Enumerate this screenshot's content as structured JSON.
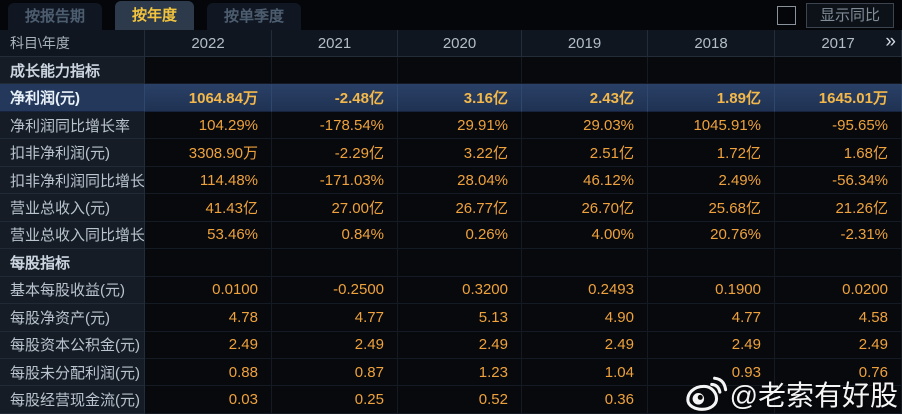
{
  "tabs": [
    {
      "label": "按报告期",
      "active": false
    },
    {
      "label": "按年度",
      "active": true
    },
    {
      "label": "按单季度",
      "active": false
    }
  ],
  "controls": {
    "show_yoy_label": "显示同比",
    "checkbox_checked": false
  },
  "table": {
    "corner_label": "科目\\年度",
    "years": [
      "2022",
      "2021",
      "2020",
      "2019",
      "2018",
      "2017"
    ],
    "more_icon": "»",
    "rows": [
      {
        "type": "section",
        "label": "成长能力指标",
        "values": [
          "",
          "",
          "",
          "",
          "",
          ""
        ]
      },
      {
        "type": "highlight",
        "label": "净利润(元)",
        "values": [
          "1064.84万",
          "-2.48亿",
          "3.16亿",
          "2.43亿",
          "1.89亿",
          "1645.01万"
        ]
      },
      {
        "type": "data",
        "label": "净利润同比增长率",
        "values": [
          "104.29%",
          "-178.54%",
          "29.91%",
          "29.03%",
          "1045.91%",
          "-95.65%"
        ]
      },
      {
        "type": "data",
        "label": "扣非净利润(元)",
        "values": [
          "3308.90万",
          "-2.29亿",
          "3.22亿",
          "2.51亿",
          "1.72亿",
          "1.68亿"
        ]
      },
      {
        "type": "data",
        "label": "扣非净利润同比增长率",
        "values": [
          "114.48%",
          "-171.03%",
          "28.04%",
          "46.12%",
          "2.49%",
          "-56.34%"
        ]
      },
      {
        "type": "data",
        "label": "营业总收入(元)",
        "values": [
          "41.43亿",
          "27.00亿",
          "26.77亿",
          "26.70亿",
          "25.68亿",
          "21.26亿"
        ]
      },
      {
        "type": "data",
        "label": "营业总收入同比增长率",
        "values": [
          "53.46%",
          "0.84%",
          "0.26%",
          "4.00%",
          "20.76%",
          "-2.31%"
        ]
      },
      {
        "type": "section",
        "label": "每股指标",
        "values": [
          "",
          "",
          "",
          "",
          "",
          ""
        ]
      },
      {
        "type": "data",
        "label": "基本每股收益(元)",
        "values": [
          "0.0100",
          "-0.2500",
          "0.3200",
          "0.2493",
          "0.1900",
          "0.0200"
        ]
      },
      {
        "type": "data",
        "label": "每股净资产(元)",
        "values": [
          "4.78",
          "4.77",
          "5.13",
          "4.90",
          "4.77",
          "4.58"
        ]
      },
      {
        "type": "data",
        "label": "每股资本公积金(元)",
        "values": [
          "2.49",
          "2.49",
          "2.49",
          "2.49",
          "2.49",
          "2.49"
        ]
      },
      {
        "type": "data",
        "label": "每股未分配利润(元)",
        "values": [
          "0.88",
          "0.87",
          "1.23",
          "1.04",
          "0.93",
          "0.76"
        ]
      },
      {
        "type": "data",
        "label": "每股经营现金流(元)",
        "values": [
          "0.03",
          "0.25",
          "0.52",
          "0.36",
          "",
          ""
        ]
      }
    ]
  },
  "watermark": {
    "handle": "@老索有好股",
    "icon": "weibo-icon"
  },
  "colors": {
    "value_gold": "#efa23c",
    "highlight_gold": "#f4b84a",
    "tab_active_text": "#f2c33e",
    "highlight_row_bg": "#24385c",
    "label_col_bg": "#151c26",
    "cell_bg": "#07090d"
  }
}
